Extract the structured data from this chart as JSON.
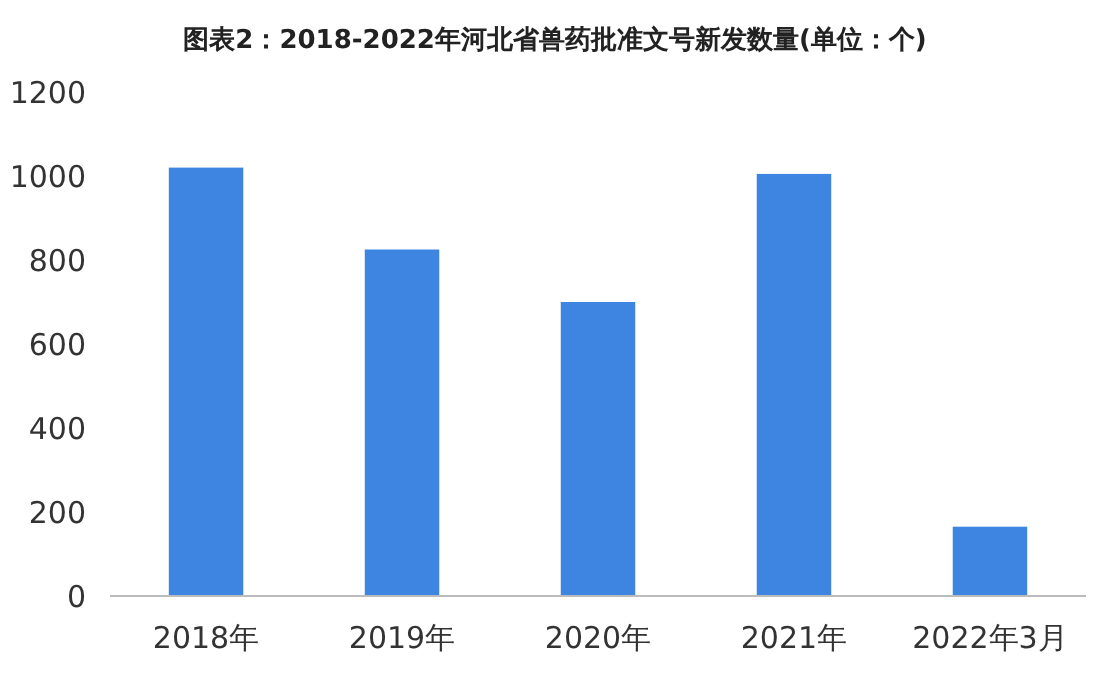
{
  "chart_data": {
    "type": "bar",
    "title": "图表2：2018-2022年河北省兽药批准文号新发数量(单位：个)",
    "categories": [
      "2018年",
      "2019年",
      "2020年",
      "2021年",
      "2022年3月"
    ],
    "values": [
      1020,
      825,
      700,
      1005,
      165
    ],
    "color": "#3d85e0",
    "ylim": [
      0,
      1200
    ],
    "yticks": [
      0,
      200,
      400,
      600,
      800,
      1000,
      1200
    ],
    "grid": false
  }
}
